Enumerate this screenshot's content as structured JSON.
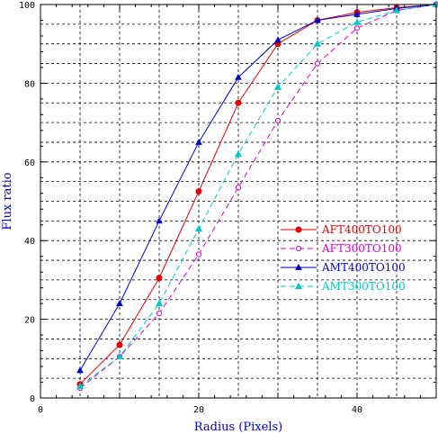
{
  "chart_data": {
    "type": "line",
    "title": "",
    "xlabel": "Radius (Pixels)",
    "ylabel": "Flux ratio",
    "xlim": [
      0,
      50
    ],
    "ylim": [
      0,
      100
    ],
    "xticks": [
      0,
      20,
      40
    ],
    "yticks": [
      0,
      20,
      40,
      60,
      80,
      100
    ],
    "x_grid_step": 5,
    "y_grid_step": 5,
    "grid": true,
    "legend_position": "right",
    "axis_color": "#000000",
    "label_color": "#0000cc",
    "series": [
      {
        "name": "AFT400TO100",
        "color": "#e00000",
        "dash": "solid",
        "marker": "filled-circle",
        "x": [
          5,
          10,
          15,
          20,
          25,
          30,
          35,
          40,
          45,
          50
        ],
        "values": [
          3.5,
          13.5,
          30.5,
          52.5,
          75,
          90,
          96,
          98,
          99.2,
          100
        ]
      },
      {
        "name": "AFT300TO100",
        "color": "#d400d4",
        "dash": "dashed",
        "marker": "open-circle",
        "x": [
          5,
          10,
          15,
          20,
          25,
          30,
          35,
          40,
          45,
          50
        ],
        "values": [
          2.5,
          10.5,
          21.5,
          36.5,
          53.5,
          70.5,
          85,
          94,
          98.5,
          100
        ]
      },
      {
        "name": "AMT400TO100",
        "color": "#0000cc",
        "dash": "solid",
        "marker": "filled-triangle",
        "x": [
          5,
          10,
          15,
          20,
          25,
          30,
          35,
          40,
          45,
          50
        ],
        "values": [
          7,
          24,
          45,
          65,
          81.5,
          91,
          96,
          97.5,
          99,
          100
        ]
      },
      {
        "name": "AMT300TO100",
        "color": "#00c8c8",
        "dash": "dashed",
        "marker": "triangle",
        "x": [
          5,
          10,
          15,
          20,
          25,
          30,
          35,
          40,
          45,
          50
        ],
        "values": [
          3,
          10.5,
          24,
          43,
          62,
          79,
          90,
          95.5,
          98.5,
          100
        ]
      }
    ]
  }
}
